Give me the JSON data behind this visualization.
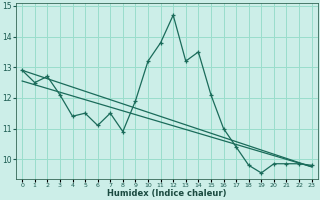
{
  "x": [
    0,
    1,
    2,
    3,
    4,
    5,
    6,
    7,
    8,
    9,
    10,
    11,
    12,
    13,
    14,
    15,
    16,
    17,
    18,
    19,
    20,
    21,
    22,
    23
  ],
  "y_main": [
    12.9,
    12.5,
    12.7,
    12.1,
    11.4,
    11.5,
    11.1,
    11.5,
    10.9,
    11.9,
    13.2,
    13.8,
    14.7,
    13.2,
    13.5,
    12.1,
    11.0,
    10.4,
    9.8,
    9.55,
    9.85,
    9.85,
    9.85,
    9.8
  ],
  "trend1_x": [
    0,
    23
  ],
  "trend1_y": [
    12.9,
    9.75
  ],
  "trend2_x": [
    0,
    23
  ],
  "trend2_y": [
    12.55,
    9.75
  ],
  "bg_color": "#cceee8",
  "grid_color": "#99ddcc",
  "line_color": "#1a6b5a",
  "xlabel": "Humidex (Indice chaleur)",
  "xlim": [
    -0.5,
    23.5
  ],
  "ylim": [
    9.35,
    15.1
  ],
  "yticks": [
    10,
    11,
    12,
    13,
    14,
    15
  ],
  "xtick_labels": [
    "0",
    "1",
    "2",
    "3",
    "4",
    "5",
    "6",
    "7",
    "8",
    "9",
    "10",
    "11",
    "12",
    "13",
    "14",
    "15",
    "16",
    "17",
    "18",
    "19",
    "20",
    "21",
    "22",
    "23"
  ]
}
